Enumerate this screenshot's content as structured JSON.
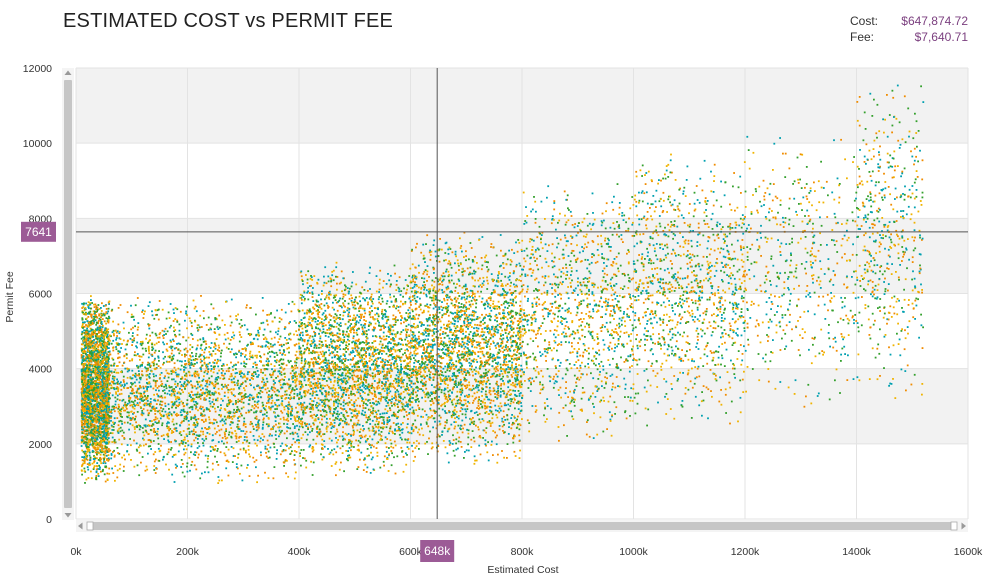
{
  "header": {
    "title": "ESTIMATED COST vs PERMIT FEE"
  },
  "readout": {
    "cost_label": "Cost:",
    "cost_value": "$647,874.72",
    "fee_label": "Fee:",
    "fee_value": "$7,640.71"
  },
  "crosshair": {
    "x_value": 647874.72,
    "y_value": 7640.71,
    "x_badge": "648k",
    "y_badge": "7641"
  },
  "scrollbars": {
    "horizontal_scrollbar": {
      "start_fraction": 0.0,
      "end_fraction": 1.0
    },
    "vertical_scrollbar": {
      "start_fraction": 0.0,
      "end_fraction": 1.0
    }
  },
  "colors": {
    "accent": "#9c5b96",
    "band": "#f2f2f2",
    "series": [
      "#00a0b0",
      "#33a02c",
      "#f0b400",
      "#f08c00"
    ]
  },
  "chart_data": {
    "type": "scatter",
    "title": "ESTIMATED COST vs PERMIT FEE",
    "xlabel": "Estimated Cost",
    "ylabel": "Permit Fee",
    "xlim": [
      0,
      1600000
    ],
    "ylim": [
      0,
      12000
    ],
    "x_ticks": [
      0,
      200000,
      400000,
      600000,
      800000,
      1000000,
      1200000,
      1400000,
      1600000
    ],
    "x_tick_labels": [
      "0k",
      "200k",
      "400k",
      "600k",
      "800k",
      "1000k",
      "1200k",
      "1400k",
      "1600k"
    ],
    "y_ticks": [
      0,
      2000,
      4000,
      6000,
      8000,
      10000,
      12000
    ],
    "y_tick_labels": [
      "0",
      "2000",
      "4000",
      "6000",
      "8000",
      "10000",
      "12000"
    ],
    "grid": true,
    "legend": "none",
    "point_cloud": [
      {
        "x_range": [
          10000,
          60000
        ],
        "y_range": [
          900,
          6000
        ],
        "density": "high"
      },
      {
        "x_range": [
          60000,
          400000
        ],
        "y_range": [
          900,
          6000
        ],
        "density": "high"
      },
      {
        "x_range": [
          400000,
          600000
        ],
        "y_range": [
          1100,
          6900
        ],
        "density": "high"
      },
      {
        "x_range": [
          600000,
          800000
        ],
        "y_range": [
          1400,
          7700
        ],
        "density": "high"
      },
      {
        "x_range": [
          800000,
          1000000
        ],
        "y_range": [
          2000,
          9100
        ],
        "density": "medium"
      },
      {
        "x_range": [
          1000000,
          1200000
        ],
        "y_range": [
          2400,
          9800
        ],
        "density": "medium"
      },
      {
        "x_range": [
          1200000,
          1400000
        ],
        "y_range": [
          2600,
          10600
        ],
        "density": "low"
      },
      {
        "x_range": [
          1400000,
          1520000
        ],
        "y_range": [
          3000,
          11900
        ],
        "density": "low"
      }
    ]
  }
}
